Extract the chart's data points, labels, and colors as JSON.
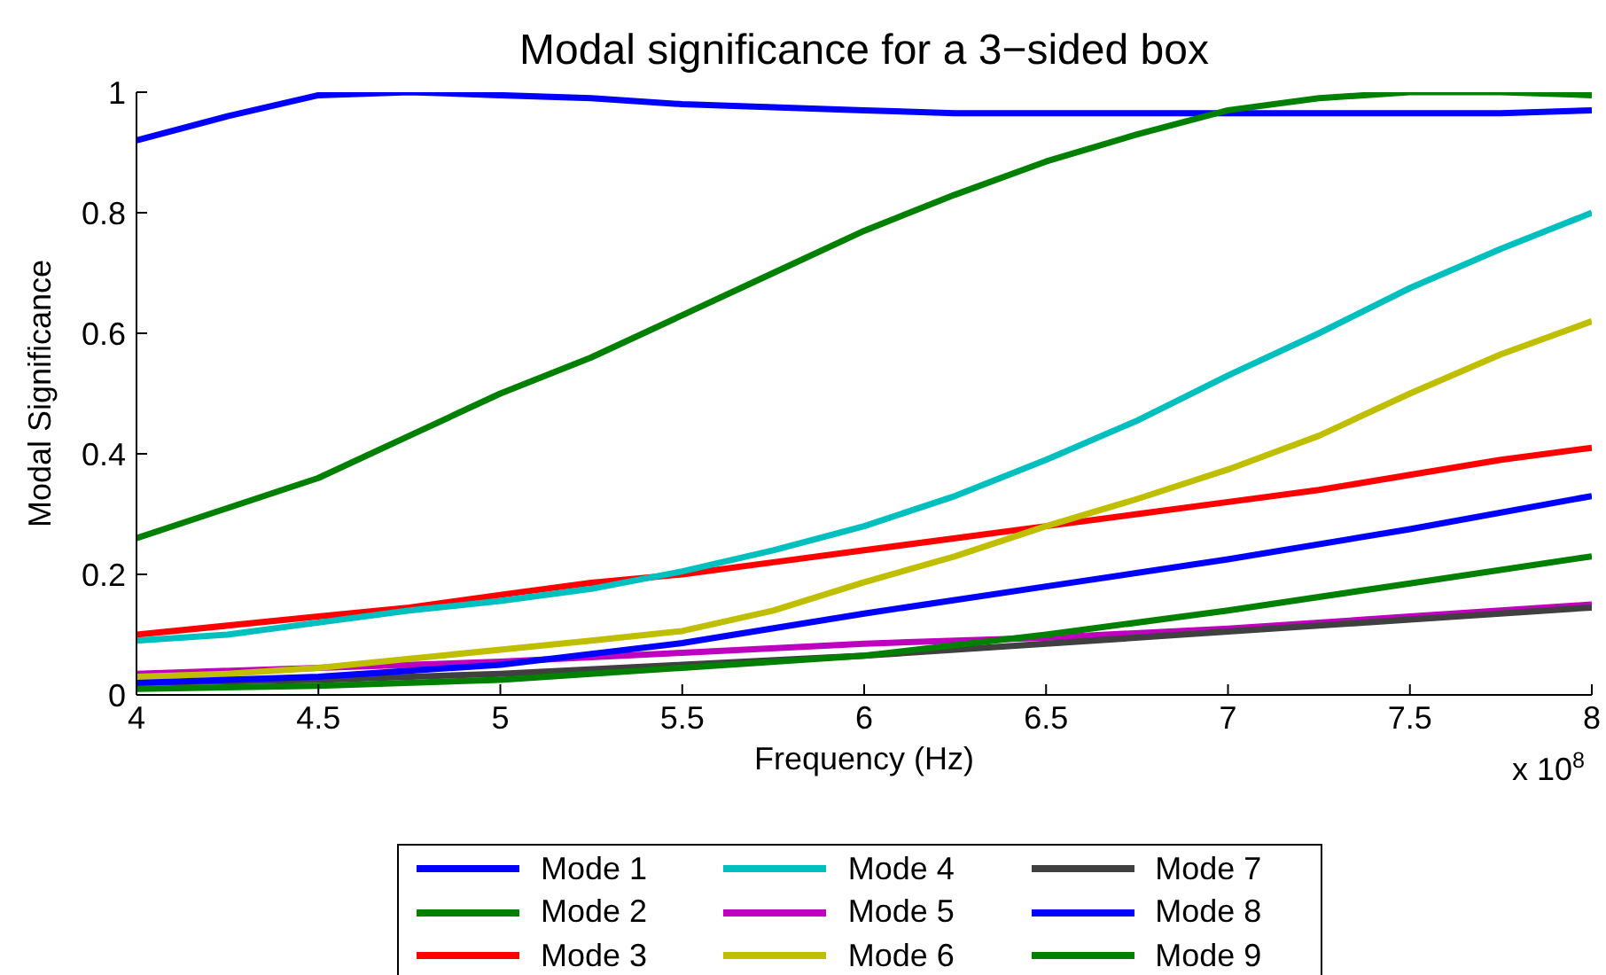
{
  "chart_data": {
    "type": "line",
    "title": "Modal significance for a 3−sided box",
    "xlabel": "Frequency (Hz)",
    "ylabel": "Modal Significance",
    "annotations": [
      "x 10$^{8}$"
    ],
    "xlim": [
      4,
      8
    ],
    "xticks": [
      4,
      4.5,
      5,
      5.5,
      6,
      6.5,
      7,
      7.5,
      8
    ],
    "ylim": [
      0,
      1
    ],
    "yticks": [
      0,
      0.2,
      0.4,
      0.6,
      0.8,
      1
    ],
    "grid": false,
    "legend": "bottom",
    "marker": "none",
    "line_style": "solid",
    "series": [
      {
        "name": "Mode 1",
        "color": "#0000ff",
        "x": [
          4,
          4.25,
          4.5,
          4.75,
          5,
          5.25,
          5.5,
          5.75,
          6,
          6.25,
          6.5,
          6.75,
          7,
          7.25,
          7.5,
          7.75,
          8
        ],
        "values": [
          0.92,
          0.96,
          0.995,
          1.0,
          0.995,
          0.99,
          0.98,
          0.975,
          0.97,
          0.965,
          0.965,
          0.965,
          0.965,
          0.965,
          0.965,
          0.965,
          0.97
        ]
      },
      {
        "name": "Mode 2",
        "color": "#008000",
        "x": [
          4,
          4.25,
          4.5,
          4.75,
          5,
          5.25,
          5.5,
          5.75,
          6,
          6.25,
          6.5,
          6.75,
          7,
          7.25,
          7.5,
          7.75,
          8
        ],
        "values": [
          0.26,
          0.31,
          0.36,
          0.43,
          0.5,
          0.56,
          0.63,
          0.7,
          0.77,
          0.83,
          0.885,
          0.93,
          0.97,
          0.99,
          1.0,
          1.0,
          0.995
        ]
      },
      {
        "name": "Mode 3",
        "color": "#ff0000",
        "x": [
          4,
          4.25,
          4.5,
          4.75,
          5,
          5.25,
          5.5,
          5.75,
          6,
          6.25,
          6.5,
          6.75,
          7,
          7.25,
          7.5,
          7.75,
          8
        ],
        "values": [
          0.1,
          0.115,
          0.13,
          0.145,
          0.166,
          0.186,
          0.2,
          0.22,
          0.24,
          0.26,
          0.28,
          0.3,
          0.32,
          0.34,
          0.365,
          0.39,
          0.41
        ]
      },
      {
        "name": "Mode 4",
        "color": "#00bfbf",
        "x": [
          4,
          4.25,
          4.5,
          4.75,
          5,
          5.25,
          5.5,
          5.75,
          6,
          6.25,
          6.5,
          6.75,
          7,
          7.25,
          7.5,
          7.75,
          8
        ],
        "values": [
          0.09,
          0.1,
          0.12,
          0.14,
          0.156,
          0.176,
          0.205,
          0.24,
          0.28,
          0.33,
          0.39,
          0.455,
          0.53,
          0.6,
          0.675,
          0.74,
          0.8
        ]
      },
      {
        "name": "Mode 5",
        "color": "#bf00bf",
        "x": [
          4,
          4.5,
          5,
          5.5,
          6,
          6.5,
          7,
          7.5,
          8
        ],
        "values": [
          0.035,
          0.045,
          0.055,
          0.07,
          0.085,
          0.095,
          0.11,
          0.13,
          0.15
        ]
      },
      {
        "name": "Mode 6",
        "color": "#bfbf00",
        "x": [
          4,
          4.25,
          4.5,
          4.75,
          5,
          5.25,
          5.5,
          5.75,
          6,
          6.25,
          6.5,
          6.75,
          7,
          7.25,
          7.5,
          7.75,
          8
        ],
        "values": [
          0.03,
          0.035,
          0.045,
          0.06,
          0.075,
          0.09,
          0.106,
          0.14,
          0.187,
          0.23,
          0.28,
          0.325,
          0.374,
          0.43,
          0.5,
          0.565,
          0.62
        ]
      },
      {
        "name": "Mode 7",
        "color": "#404040",
        "x": [
          4,
          4.5,
          5,
          5.5,
          6,
          6.5,
          7,
          7.5,
          8
        ],
        "values": [
          0.02,
          0.025,
          0.035,
          0.05,
          0.065,
          0.085,
          0.105,
          0.125,
          0.145
        ]
      },
      {
        "name": "Mode 8",
        "color": "#0000ff",
        "x": [
          4,
          4.5,
          5,
          5.5,
          6,
          6.5,
          7,
          7.5,
          8
        ],
        "values": [
          0.02,
          0.03,
          0.05,
          0.086,
          0.135,
          0.18,
          0.225,
          0.275,
          0.33
        ]
      },
      {
        "name": "Mode 9",
        "color": "#008000",
        "x": [
          4,
          4.5,
          5,
          5.5,
          6,
          6.5,
          7,
          7.5,
          8
        ],
        "values": [
          0.01,
          0.015,
          0.025,
          0.045,
          0.065,
          0.1,
          0.14,
          0.185,
          0.23
        ]
      }
    ]
  }
}
